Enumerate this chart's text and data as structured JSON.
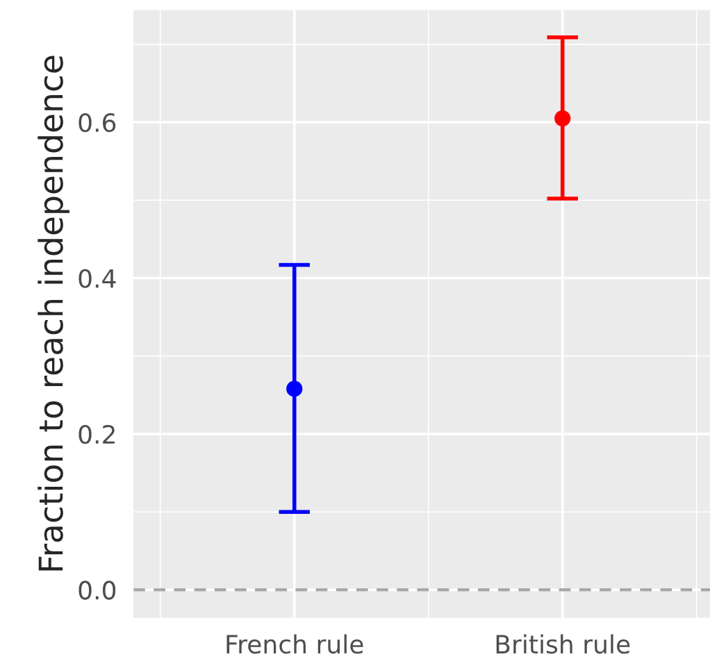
{
  "chart_data": {
    "type": "scatter",
    "ylabel": "Fraction to reach independence",
    "categories": [
      "French rule",
      "British rule"
    ],
    "values": [
      0.258,
      0.605
    ],
    "errors": [
      [
        0.1,
        0.417
      ],
      [
        0.502,
        0.709
      ]
    ],
    "colors": [
      "#0000ff",
      "#ff0000"
    ],
    "marker": "circle",
    "ylim": [
      -0.036,
      0.744
    ],
    "yticks": [
      {
        "value": 0,
        "label": "0.0"
      },
      0.2,
      0.4,
      0.6
    ],
    "ref_lines": [
      {
        "axis": "y",
        "value": 0,
        "color": "#a6a6a6",
        "line_style": "dashed"
      }
    ],
    "grid": true
  }
}
